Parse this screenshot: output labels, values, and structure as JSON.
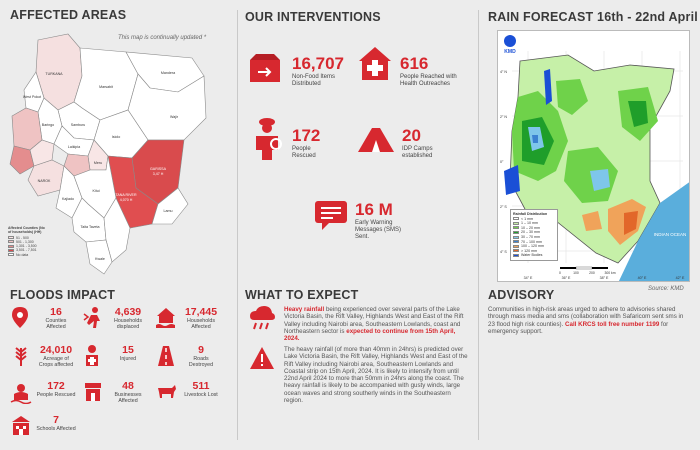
{
  "sections": {
    "affected_areas": "AFFECTED AREAS",
    "interventions": "OUR INTERVENTIONS",
    "forecast": "RAIN FORECAST 16th  - 22nd April",
    "floods_impact": "FLOODS IMPACT",
    "what_to_expect": "WHAT TO EXPECT",
    "advisory": "ADVISORY"
  },
  "map": {
    "note": "This map is continually updated *",
    "legend_title": "Affected Counties (No of households) (HH)",
    "legend": [
      {
        "label": "51 - 500",
        "color": "#f8e6e6"
      },
      {
        "label": "501 - 1,300",
        "color": "#efc3c3"
      },
      {
        "label": "1,301 - 3,500",
        "color": "#e48d8e"
      },
      {
        "label": "3,501 - 7,501",
        "color": "#d94b4d"
      },
      {
        "label": "No data",
        "color": "#ffffff"
      }
    ],
    "labels": {
      "turkana": "TURKANA",
      "marsabit": "Marsabit",
      "mandera": "Mandera",
      "wajir": "Wajir",
      "samburu": "Samburu",
      "isiolo": "Isiolo",
      "garissa": "GARISSA",
      "tana_river": "TANA RIVER",
      "tana_river_hh": "4,070 H",
      "garissa_hh": "3,47 H",
      "kitui": "Kitui",
      "lamu": "Lamu",
      "taita": "Taita Taveta",
      "kwale": "Kwale",
      "kajiado": "Kajiado",
      "narok": "NAROK",
      "west_pokot": "West Pokot",
      "baringo": "Baringo",
      "meru": "Meru",
      "laikipia": "Laikipia"
    }
  },
  "interventions": [
    {
      "value": "16,707",
      "label": "Non-Food Items Distributed",
      "icon": "box-icon"
    },
    {
      "value": "616",
      "label": "People Reached with Health Outreaches",
      "icon": "health-cross-icon"
    },
    {
      "value": "172",
      "label": "People Rescued",
      "icon": "rescuer-icon"
    },
    {
      "value": "20",
      "label": "IDP Camps established",
      "icon": "tent-icon"
    },
    {
      "value": "16 M",
      "label": "Early Warning Messages (SMS) Sent.",
      "icon": "sms-icon"
    }
  ],
  "floods_impact": [
    {
      "value": "16",
      "label": "Counties Affected",
      "icon": "map-pin-icon"
    },
    {
      "value": "4,639",
      "label": "Households displaced",
      "icon": "displaced-icon"
    },
    {
      "value": "17,445",
      "label": "Households Affected",
      "icon": "flooded-house-icon"
    },
    {
      "value": "24,010",
      "label": "Acreage of Crops affected",
      "icon": "crops-icon"
    },
    {
      "value": "15",
      "label": "Injured",
      "icon": "injured-icon"
    },
    {
      "value": "9",
      "label": "Roads Destroyed",
      "icon": "road-icon"
    },
    {
      "value": "172",
      "label": "People Rescued",
      "icon": "lifebuoy-icon"
    },
    {
      "value": "48",
      "label": "Businesses Affected",
      "icon": "shop-icon"
    },
    {
      "value": "511",
      "label": "Livestock Lost",
      "icon": "cow-icon"
    },
    {
      "value": "7",
      "label": "Schools Affected",
      "icon": "school-icon"
    }
  ],
  "what_to_expect": {
    "p1_highlight": "Heavy rainfall",
    "p1_text": " being experienced over several parts of the Lake Victoria Basin, the Rift Valley, Highlands West and East of the Rift Valley including Nairobi area, Southeastern Lowlands, coast and Northeastern sector is ",
    "p1_highlight2": "expected to continue from 15th April, 2024.",
    "p2": "The heavy rainfall (of more than 40mm in 24hrs) is predicted over Lake Victoria Basin, the Rift Valley, Highlands West and East of the Rift Valley including Nairobi area, Southeastern Lowlands and Coastal strip on 15th April, 2024. It is likely to intensify from until 22nd April 2024 to more than 50mm in 24hrs along the coast. The heavy rainfall is likely to be accompanied with gusty winds, large ocean waves and strong southerly winds in the Southeastern region."
  },
  "advisory": {
    "text": "Communities in high-risk areas urged to adhere to advisories shared through mass media and sms (collaboration with Safaricom sent sms in 23 flood high risk counties). ",
    "highlight": "Call KRCS toll free number 1199",
    "text2": " for emergency support."
  },
  "forecast": {
    "header": "KMD",
    "legend_title": "Rainfall Distribution",
    "legend": [
      {
        "label": "< 1 mm",
        "color": "#ffffff"
      },
      {
        "label": "1 – 10 mm",
        "color": "#c6f0a8"
      },
      {
        "label": "10 – 20 mm",
        "color": "#6fd24a"
      },
      {
        "label": "20 – 30 mm",
        "color": "#1f9e2a"
      },
      {
        "label": "30 – 70 mm",
        "color": "#7ec6ea"
      },
      {
        "label": "70 – 100 mm",
        "color": "#3b82d1"
      },
      {
        "label": "100 – 120 mm",
        "color": "#f0a35a"
      },
      {
        "label": "> 120 mm",
        "color": "#e2672a"
      },
      {
        "label": "Water Bodies",
        "color": "#1a4fd6"
      }
    ],
    "ocean": "INDIAN OCEAN",
    "scale_labels": [
      "0",
      "100",
      "200",
      "300 km"
    ],
    "lon_labels": [
      "34° E",
      "36° E",
      "38° E",
      "40° E",
      "42° E"
    ],
    "lat_labels": [
      "4° N",
      "2° N",
      "0°",
      "2° S",
      "4° S"
    ],
    "source": "Source: KMD"
  }
}
